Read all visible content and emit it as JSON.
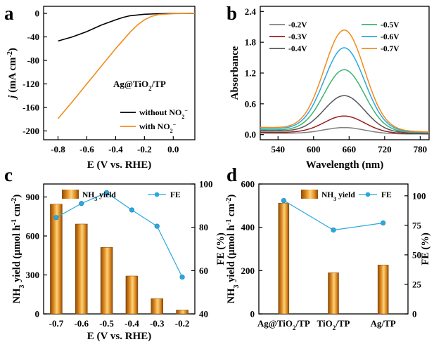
{
  "chart_data": [
    {
      "panel": "a",
      "type": "line",
      "xlabel": "E (V vs. RHE)",
      "ylabel": "j (mA cm⁻²)",
      "annotation": "Ag@TiO₂/TP",
      "xlim": [
        -0.9,
        0.15
      ],
      "ylim": [
        -215,
        12
      ],
      "xticks": [
        -0.8,
        -0.6,
        -0.4,
        -0.2,
        0.0
      ],
      "xtick_labels": [
        "-0.8",
        "-0.6",
        "-0.4",
        "-0.2",
        "0.0"
      ],
      "yticks": [
        0,
        -40,
        -80,
        -120,
        -160,
        -200
      ],
      "ytick_labels": [
        "0",
        "-40",
        "-80",
        "-120",
        "-160",
        "-200"
      ],
      "legend_position": "bottom-right",
      "series": [
        {
          "name": "without NO₂⁻",
          "color": "#000000",
          "x": [
            -0.8,
            -0.7,
            -0.6,
            -0.5,
            -0.4,
            -0.35,
            -0.3,
            -0.2,
            -0.1,
            0.0,
            0.15
          ],
          "y": [
            -47,
            -40,
            -31,
            -20,
            -11,
            -7,
            -4,
            -1.5,
            -0.5,
            -0.2,
            0
          ]
        },
        {
          "name": "with NO₂⁻",
          "color": "#f28c1b",
          "x": [
            -0.8,
            -0.7,
            -0.6,
            -0.5,
            -0.4,
            -0.3,
            -0.25,
            -0.2,
            -0.15,
            -0.1,
            0.0,
            0.15
          ],
          "y": [
            -179,
            -150,
            -120,
            -90,
            -60,
            -32,
            -20,
            -11,
            -5,
            -2,
            -0.5,
            0
          ]
        }
      ]
    },
    {
      "panel": "b",
      "type": "line",
      "xlabel": "Wavelength (nm)",
      "ylabel": "Absorbance",
      "xlim": [
        510,
        795
      ],
      "ylim": [
        -0.1,
        2.5
      ],
      "xticks": [
        540,
        600,
        660,
        720,
        780
      ],
      "xtick_labels": [
        "540",
        "600",
        "660",
        "720",
        "780"
      ],
      "yticks": [
        0.0,
        0.6,
        1.2,
        1.8,
        2.4
      ],
      "ytick_labels": [
        "0.0",
        "0.6",
        "1.2",
        "1.8",
        "2.4"
      ],
      "legend_position": "top",
      "series": [
        {
          "name": "-0.2V",
          "color": "#808080",
          "peak_nm": 652,
          "peak": 0.13,
          "base": 0.03
        },
        {
          "name": "-0.3V",
          "color": "#9b1c1c",
          "peak_nm": 652,
          "peak": 0.35,
          "base": 0.05
        },
        {
          "name": "-0.4V",
          "color": "#555555",
          "peak_nm": 652,
          "peak": 0.74,
          "base": 0.08
        },
        {
          "name": "-0.5V",
          "color": "#3cb371",
          "peak_nm": 652,
          "peak": 1.24,
          "base": 0.1
        },
        {
          "name": "-0.6V",
          "color": "#29a8e0",
          "peak_nm": 652,
          "peak": 1.66,
          "base": 0.13
        },
        {
          "name": "-0.7V",
          "color": "#f28c1b",
          "peak_nm": 652,
          "peak": 2.0,
          "base": 0.15
        }
      ]
    },
    {
      "panel": "c",
      "type": "bar",
      "xlabel": "E (V vs. RHE)",
      "ylabel": "NH₃ yield (μmol h⁻¹ cm⁻²)",
      "y2label": "FE (%)",
      "categories": [
        "-0.7",
        "-0.6",
        "-0.5",
        "-0.4",
        "-0.3",
        "-0.2"
      ],
      "ylim": [
        0,
        1000
      ],
      "yticks": [
        0,
        300,
        600,
        900
      ],
      "ytick_labels": [
        "0",
        "300",
        "600",
        "900"
      ],
      "y2lim": [
        40,
        100
      ],
      "y2ticks": [
        40,
        60,
        80,
        100
      ],
      "y2tick_labels": [
        "40",
        "60",
        "80",
        "100"
      ],
      "legend_position": "top",
      "series": [
        {
          "name": "NH₃ yield",
          "type": "bar",
          "axis": "left",
          "color": "#e08a1e",
          "values": [
            845,
            692,
            512,
            292,
            118,
            30
          ]
        },
        {
          "name": "FE",
          "type": "line",
          "axis": "right",
          "color": "#29a8e0",
          "values": [
            84.5,
            91,
            96,
            88,
            80.5,
            57
          ]
        }
      ]
    },
    {
      "panel": "d",
      "type": "bar",
      "ylabel": "NH₃ yield (μmol h⁻¹ cm⁻²)",
      "y2label": "FE (%)",
      "categories": [
        "Ag@TiO₂/TP",
        "TiO₂/TP",
        "Ag/TP"
      ],
      "ylim": [
        0,
        600
      ],
      "yticks": [
        0,
        200,
        400,
        600
      ],
      "ytick_labels": [
        "0",
        "200",
        "400",
        "600"
      ],
      "y2lim": [
        0,
        110
      ],
      "y2ticks": [
        0,
        25,
        50,
        75,
        100
      ],
      "y2tick_labels": [
        "0",
        "25",
        "50",
        "75",
        "100"
      ],
      "legend_position": "top",
      "series": [
        {
          "name": "NH₃ yield",
          "type": "bar",
          "axis": "left",
          "color": "#e08a1e",
          "values": [
            512,
            190,
            226
          ]
        },
        {
          "name": "FE",
          "type": "line",
          "axis": "right",
          "color": "#29a8e0",
          "values": [
            96,
            71,
            77
          ]
        }
      ]
    }
  ],
  "panel_labels": [
    "a",
    "b",
    "c",
    "d"
  ]
}
